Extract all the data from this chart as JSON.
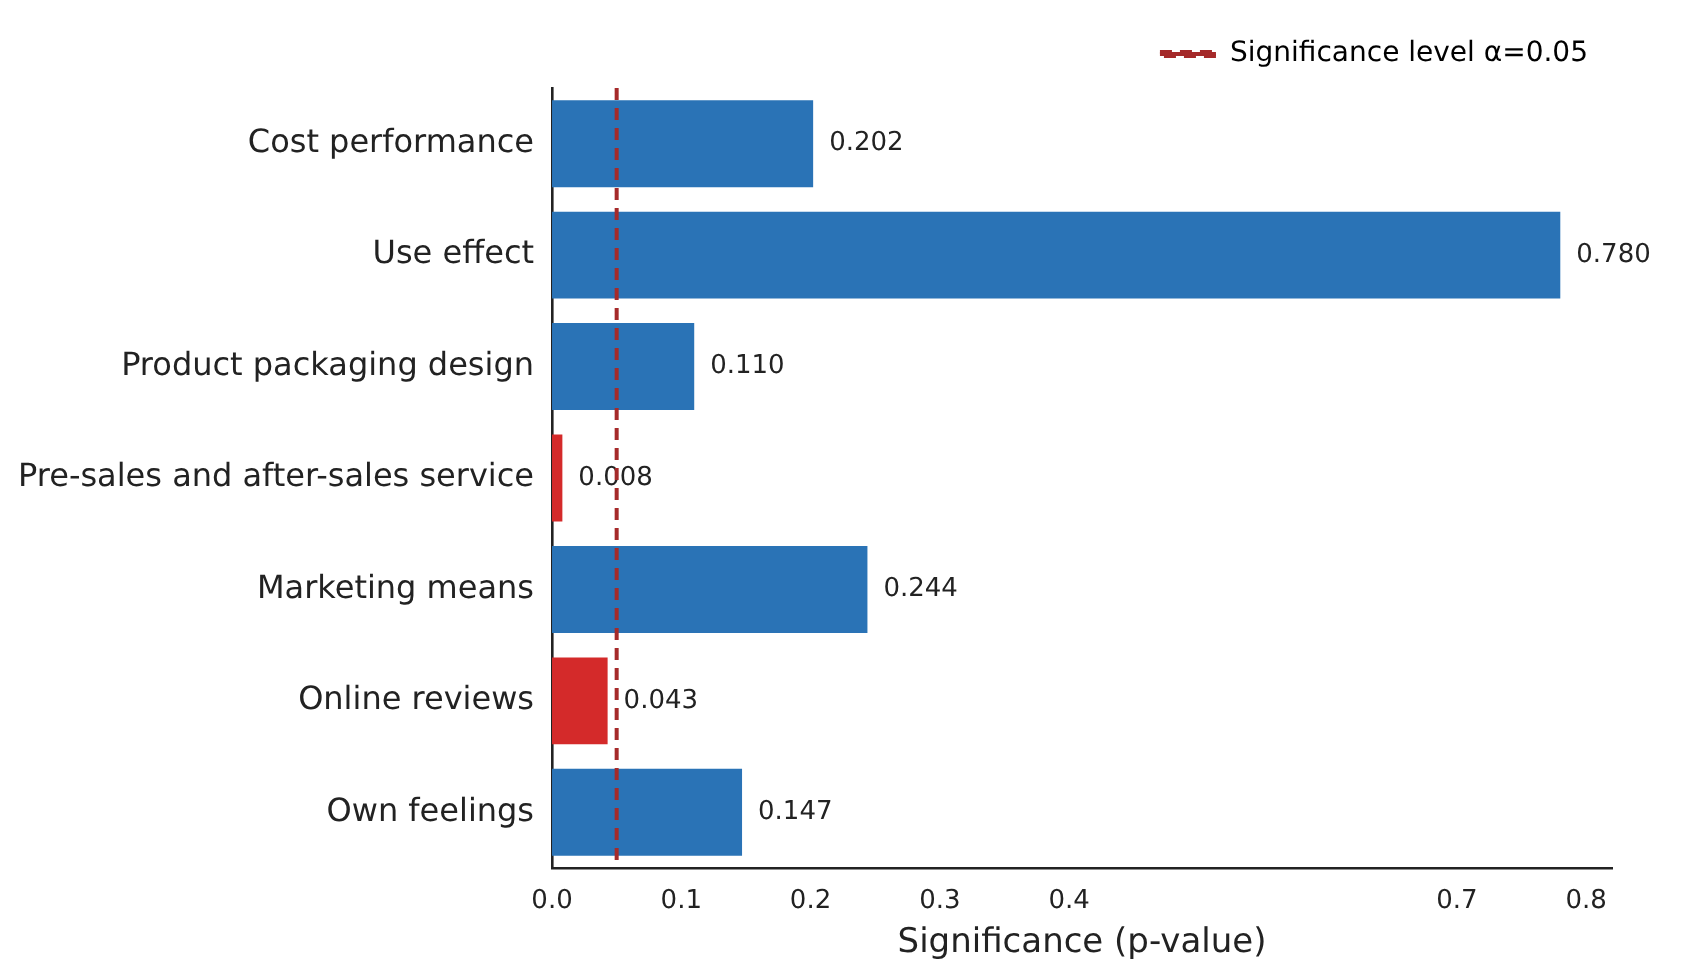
{
  "chart_data": {
    "type": "bar",
    "orientation": "horizontal",
    "xlabel": "Significance (p-value)",
    "categories": [
      "Cost performance",
      "Use effect",
      "Product packaging design",
      "Pre-sales and after-sales service",
      "Marketing means",
      "Online reviews",
      "Own feelings"
    ],
    "values": [
      0.202,
      0.78,
      0.11,
      0.008,
      0.244,
      0.043,
      0.147
    ],
    "value_labels": [
      "0.202",
      "0.780",
      "0.110",
      "0.008",
      "0.244",
      "0.043",
      "0.147"
    ],
    "colors": [
      "#2a73b6",
      "#2a73b6",
      "#2a73b6",
      "#d42a2a",
      "#2a73b6",
      "#d42a2a",
      "#2a73b6"
    ],
    "xlim": [
      0,
      0.82
    ],
    "xticks": [
      {
        "value": 0,
        "label": "0.0"
      },
      0.1,
      0.2,
      0.3,
      0.4,
      0.7,
      0.8
    ],
    "ref_lines": [
      {
        "axis": "x",
        "value": 0.05,
        "label": "Significance level α=0.05",
        "color": "#a52a2a",
        "line_style": "dashed"
      }
    ],
    "grid": false,
    "legend": "top right"
  }
}
